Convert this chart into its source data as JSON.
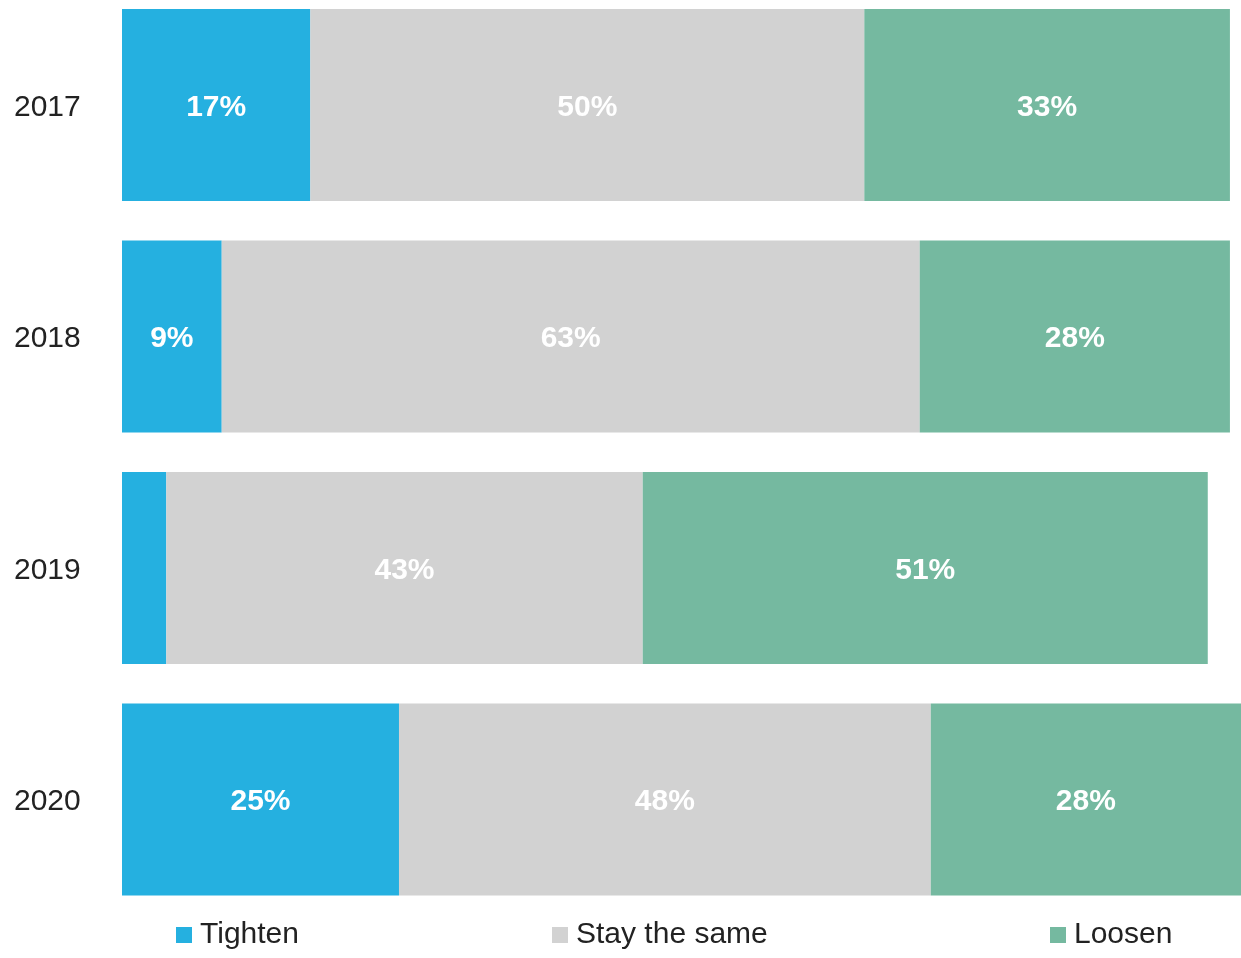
{
  "chart_data": {
    "type": "bar",
    "orientation": "horizontal",
    "stacked": true,
    "categories": [
      "2017",
      "2018",
      "2019",
      "2020"
    ],
    "xlim": [
      0,
      101
    ],
    "legend": "bottom",
    "tick_labels": "y",
    "series": [
      {
        "name": "Tighten",
        "color": "#25b0e0",
        "values": [
          17,
          9,
          4,
          25
        ],
        "value_labels": [
          "17%",
          "9%",
          null,
          "25%"
        ]
      },
      {
        "name": "Stay the same",
        "color": "#d2d2d2",
        "values": [
          50,
          63,
          43,
          48
        ],
        "value_labels": [
          "50%",
          "63%",
          "43%",
          "48%"
        ]
      },
      {
        "name": "Loosen",
        "color": "#75b9a0",
        "values": [
          33,
          28,
          51,
          28
        ],
        "value_labels": [
          "33%",
          "28%",
          "51%",
          "28%"
        ]
      }
    ]
  }
}
